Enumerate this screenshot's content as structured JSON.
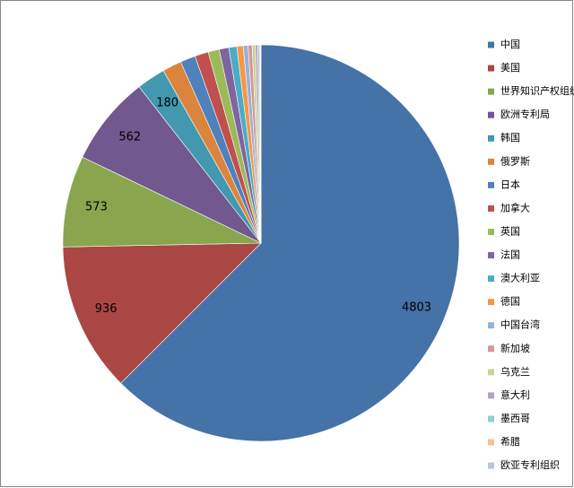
{
  "chart_data": {
    "type": "pie",
    "categories": [
      "中国",
      "美国",
      "世界知识产权组织",
      "欧洲专利局",
      "韩国",
      "俄罗斯",
      "日本",
      "加拿大",
      "英国",
      "法国",
      "澳大利亚",
      "德国",
      "中国台湾",
      "新加坡",
      "乌克兰",
      "意大利",
      "墨西哥",
      "希腊",
      "欧亚专利组织"
    ],
    "values": [
      4803,
      936,
      573,
      562,
      180,
      120,
      95,
      85,
      70,
      60,
      50,
      40,
      30,
      25,
      20,
      15,
      10,
      6,
      4
    ],
    "colors": [
      "#4572A7",
      "#AA4643",
      "#89A54E",
      "#71588F",
      "#4198AF",
      "#DB843D",
      "#4F81BD",
      "#C0504D",
      "#9BBB59",
      "#8064A2",
      "#4BACC6",
      "#F79646",
      "#95B3D7",
      "#D99694",
      "#C3D69B",
      "#B3A2C7",
      "#92CDDC",
      "#FAC090",
      "#B9C5E0"
    ],
    "legend": "right"
  }
}
